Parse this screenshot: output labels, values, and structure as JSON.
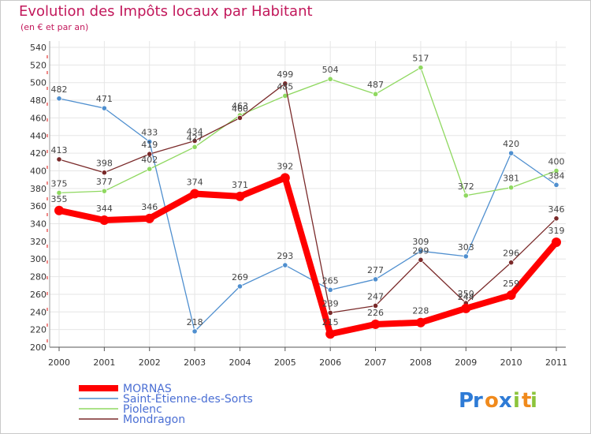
{
  "chart_data": {
    "type": "line",
    "title": "Evolution des Impôts locaux par Habitant",
    "subtitle": "(en € et par an)",
    "x": [
      "2000",
      "2001",
      "2002",
      "2003",
      "2004",
      "2005",
      "2006",
      "2007",
      "2008",
      "2009",
      "2010",
      "2011"
    ],
    "ylim": [
      200,
      540
    ],
    "yticks": [
      200,
      220,
      240,
      260,
      280,
      300,
      320,
      340,
      360,
      380,
      400,
      420,
      440,
      460,
      480,
      500,
      520,
      540
    ],
    "series": [
      {
        "name": "MORNAS",
        "color": "#ff0000",
        "values": [
          355,
          344,
          346,
          374,
          371,
          392,
          215,
          226,
          228,
          244,
          259,
          319
        ]
      },
      {
        "name": "Saint-Étienne-des-Sorts",
        "color": "#4f8fcf",
        "values": [
          482,
          471,
          433,
          218,
          269,
          293,
          265,
          277,
          309,
          303,
          420,
          384
        ]
      },
      {
        "name": "Piolenc",
        "color": "#8fd860",
        "values": [
          375,
          377,
          402,
          427,
          463,
          485,
          504,
          487,
          517,
          372,
          381,
          400
        ]
      },
      {
        "name": "Mondragon",
        "color": "#7a2a2a",
        "values": [
          413,
          398,
          419,
          434,
          460,
          499,
          239,
          247,
          299,
          250,
          296,
          346
        ]
      }
    ],
    "legend_position": "bottom-left"
  },
  "brand": {
    "letters": [
      "P",
      "r",
      "o",
      "x",
      "i",
      "t",
      "i"
    ],
    "colors": [
      "#2e7bd6",
      "#2e7bd6",
      "#f08a1c",
      "#2e7bd6",
      "#8cc43c",
      "#f08a1c",
      "#8cc43c"
    ]
  }
}
